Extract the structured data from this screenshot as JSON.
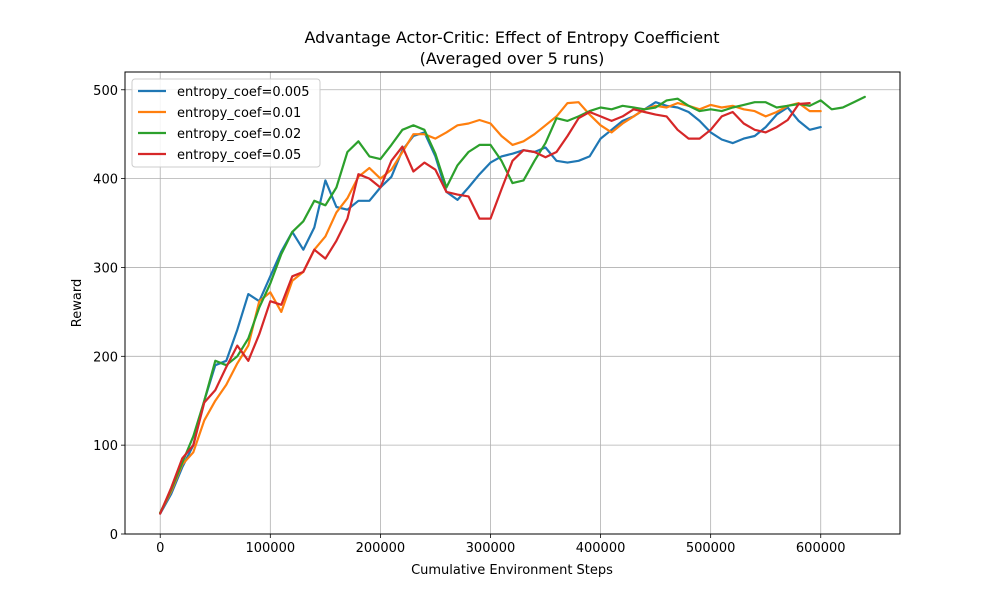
{
  "chart_data": {
    "type": "line",
    "title": "Advantage Actor-Critic: Effect of Entropy Coefficient",
    "subtitle": "(Averaged over 5 runs)",
    "xlabel": "Cumulative Environment Steps",
    "ylabel": "Reward",
    "xlim": [
      -32000,
      672000
    ],
    "ylim": [
      0,
      520
    ],
    "x_ticks": [
      0,
      100000,
      200000,
      300000,
      400000,
      500000,
      600000
    ],
    "y_ticks": [
      0,
      100,
      200,
      300,
      400,
      500
    ],
    "grid": true,
    "legend_position": "upper-left",
    "series": [
      {
        "name": "entropy_coef=0.005",
        "color": "#1f77b4",
        "points": [
          [
            0,
            23
          ],
          [
            10000,
            45
          ],
          [
            20000,
            75
          ],
          [
            30000,
            100
          ],
          [
            40000,
            150
          ],
          [
            50000,
            190
          ],
          [
            60000,
            195
          ],
          [
            70000,
            230
          ],
          [
            80000,
            270
          ],
          [
            90000,
            262
          ],
          [
            100000,
            290
          ],
          [
            110000,
            318
          ],
          [
            120000,
            340
          ],
          [
            130000,
            320
          ],
          [
            140000,
            345
          ],
          [
            150000,
            398
          ],
          [
            160000,
            368
          ],
          [
            170000,
            365
          ],
          [
            180000,
            375
          ],
          [
            190000,
            375
          ],
          [
            200000,
            390
          ],
          [
            210000,
            402
          ],
          [
            220000,
            432
          ],
          [
            230000,
            448
          ],
          [
            240000,
            452
          ],
          [
            250000,
            425
          ],
          [
            260000,
            385
          ],
          [
            270000,
            376
          ],
          [
            280000,
            390
          ],
          [
            290000,
            405
          ],
          [
            300000,
            418
          ],
          [
            310000,
            425
          ],
          [
            320000,
            428
          ],
          [
            330000,
            432
          ],
          [
            340000,
            430
          ],
          [
            350000,
            435
          ],
          [
            360000,
            420
          ],
          [
            370000,
            418
          ],
          [
            380000,
            420
          ],
          [
            390000,
            425
          ],
          [
            400000,
            445
          ],
          [
            410000,
            455
          ],
          [
            420000,
            465
          ],
          [
            430000,
            470
          ],
          [
            440000,
            478
          ],
          [
            450000,
            486
          ],
          [
            460000,
            482
          ],
          [
            470000,
            480
          ],
          [
            480000,
            475
          ],
          [
            490000,
            465
          ],
          [
            500000,
            452
          ],
          [
            510000,
            444
          ],
          [
            520000,
            440
          ],
          [
            530000,
            445
          ],
          [
            540000,
            448
          ],
          [
            550000,
            458
          ],
          [
            560000,
            472
          ],
          [
            570000,
            480
          ],
          [
            580000,
            465
          ],
          [
            590000,
            455
          ],
          [
            600000,
            458
          ]
        ]
      },
      {
        "name": "entropy_coef=0.01",
        "color": "#ff7f0e",
        "points": [
          [
            0,
            24
          ],
          [
            10000,
            48
          ],
          [
            20000,
            78
          ],
          [
            30000,
            92
          ],
          [
            40000,
            128
          ],
          [
            50000,
            150
          ],
          [
            60000,
            168
          ],
          [
            70000,
            192
          ],
          [
            80000,
            212
          ],
          [
            90000,
            262
          ],
          [
            100000,
            272
          ],
          [
            110000,
            250
          ],
          [
            120000,
            285
          ],
          [
            130000,
            295
          ],
          [
            140000,
            320
          ],
          [
            150000,
            335
          ],
          [
            160000,
            362
          ],
          [
            170000,
            378
          ],
          [
            180000,
            402
          ],
          [
            190000,
            412
          ],
          [
            200000,
            400
          ],
          [
            210000,
            410
          ],
          [
            220000,
            430
          ],
          [
            230000,
            450
          ],
          [
            240000,
            450
          ],
          [
            250000,
            445
          ],
          [
            260000,
            452
          ],
          [
            270000,
            460
          ],
          [
            280000,
            462
          ],
          [
            290000,
            466
          ],
          [
            300000,
            462
          ],
          [
            310000,
            448
          ],
          [
            320000,
            438
          ],
          [
            330000,
            442
          ],
          [
            340000,
            450
          ],
          [
            350000,
            460
          ],
          [
            360000,
            470
          ],
          [
            370000,
            485
          ],
          [
            380000,
            486
          ],
          [
            390000,
            472
          ],
          [
            400000,
            460
          ],
          [
            410000,
            452
          ],
          [
            420000,
            462
          ],
          [
            430000,
            470
          ],
          [
            440000,
            478
          ],
          [
            450000,
            482
          ],
          [
            460000,
            480
          ],
          [
            470000,
            485
          ],
          [
            480000,
            482
          ],
          [
            490000,
            478
          ],
          [
            500000,
            483
          ],
          [
            510000,
            480
          ],
          [
            520000,
            482
          ],
          [
            530000,
            478
          ],
          [
            540000,
            476
          ],
          [
            550000,
            470
          ],
          [
            560000,
            475
          ],
          [
            570000,
            482
          ],
          [
            580000,
            485
          ],
          [
            590000,
            476
          ],
          [
            600000,
            476
          ]
        ]
      },
      {
        "name": "entropy_coef=0.02",
        "color": "#2ca02c",
        "points": [
          [
            0,
            24
          ],
          [
            10000,
            50
          ],
          [
            20000,
            80
          ],
          [
            30000,
            110
          ],
          [
            40000,
            150
          ],
          [
            50000,
            195
          ],
          [
            60000,
            190
          ],
          [
            70000,
            200
          ],
          [
            80000,
            220
          ],
          [
            90000,
            255
          ],
          [
            100000,
            282
          ],
          [
            110000,
            315
          ],
          [
            120000,
            340
          ],
          [
            130000,
            352
          ],
          [
            140000,
            375
          ],
          [
            150000,
            370
          ],
          [
            160000,
            390
          ],
          [
            170000,
            430
          ],
          [
            180000,
            442
          ],
          [
            190000,
            425
          ],
          [
            200000,
            422
          ],
          [
            210000,
            438
          ],
          [
            220000,
            455
          ],
          [
            230000,
            460
          ],
          [
            240000,
            455
          ],
          [
            250000,
            428
          ],
          [
            260000,
            390
          ],
          [
            270000,
            415
          ],
          [
            280000,
            430
          ],
          [
            290000,
            438
          ],
          [
            300000,
            438
          ],
          [
            310000,
            420
          ],
          [
            320000,
            395
          ],
          [
            330000,
            398
          ],
          [
            340000,
            420
          ],
          [
            350000,
            440
          ],
          [
            360000,
            468
          ],
          [
            370000,
            465
          ],
          [
            380000,
            470
          ],
          [
            390000,
            476
          ],
          [
            400000,
            480
          ],
          [
            410000,
            478
          ],
          [
            420000,
            482
          ],
          [
            430000,
            480
          ],
          [
            440000,
            478
          ],
          [
            450000,
            480
          ],
          [
            460000,
            488
          ],
          [
            470000,
            490
          ],
          [
            480000,
            482
          ],
          [
            490000,
            476
          ],
          [
            500000,
            478
          ],
          [
            510000,
            476
          ],
          [
            520000,
            480
          ],
          [
            530000,
            483
          ],
          [
            540000,
            486
          ],
          [
            550000,
            486
          ],
          [
            560000,
            480
          ],
          [
            570000,
            482
          ],
          [
            580000,
            484
          ],
          [
            590000,
            482
          ],
          [
            600000,
            488
          ],
          [
            610000,
            478
          ],
          [
            620000,
            480
          ],
          [
            630000,
            486
          ],
          [
            640000,
            492
          ]
        ]
      },
      {
        "name": "entropy_coef=0.05",
        "color": "#d62728",
        "points": [
          [
            0,
            23
          ],
          [
            10000,
            52
          ],
          [
            20000,
            85
          ],
          [
            30000,
            100
          ],
          [
            40000,
            148
          ],
          [
            50000,
            162
          ],
          [
            60000,
            188
          ],
          [
            70000,
            212
          ],
          [
            80000,
            195
          ],
          [
            90000,
            225
          ],
          [
            100000,
            262
          ],
          [
            110000,
            258
          ],
          [
            120000,
            290
          ],
          [
            130000,
            295
          ],
          [
            140000,
            320
          ],
          [
            150000,
            310
          ],
          [
            160000,
            330
          ],
          [
            170000,
            355
          ],
          [
            180000,
            405
          ],
          [
            190000,
            400
          ],
          [
            200000,
            390
          ],
          [
            210000,
            420
          ],
          [
            220000,
            436
          ],
          [
            230000,
            408
          ],
          [
            240000,
            418
          ],
          [
            250000,
            410
          ],
          [
            260000,
            385
          ],
          [
            270000,
            382
          ],
          [
            280000,
            380
          ],
          [
            290000,
            355
          ],
          [
            300000,
            355
          ],
          [
            310000,
            388
          ],
          [
            320000,
            420
          ],
          [
            330000,
            432
          ],
          [
            340000,
            430
          ],
          [
            350000,
            424
          ],
          [
            360000,
            430
          ],
          [
            370000,
            448
          ],
          [
            380000,
            468
          ],
          [
            390000,
            475
          ],
          [
            400000,
            470
          ],
          [
            410000,
            465
          ],
          [
            420000,
            470
          ],
          [
            430000,
            478
          ],
          [
            440000,
            475
          ],
          [
            450000,
            472
          ],
          [
            460000,
            470
          ],
          [
            470000,
            455
          ],
          [
            480000,
            445
          ],
          [
            490000,
            445
          ],
          [
            500000,
            455
          ],
          [
            510000,
            470
          ],
          [
            520000,
            475
          ],
          [
            530000,
            462
          ],
          [
            540000,
            455
          ],
          [
            550000,
            452
          ],
          [
            560000,
            458
          ],
          [
            570000,
            466
          ],
          [
            580000,
            484
          ],
          [
            590000,
            485
          ]
        ]
      }
    ]
  }
}
